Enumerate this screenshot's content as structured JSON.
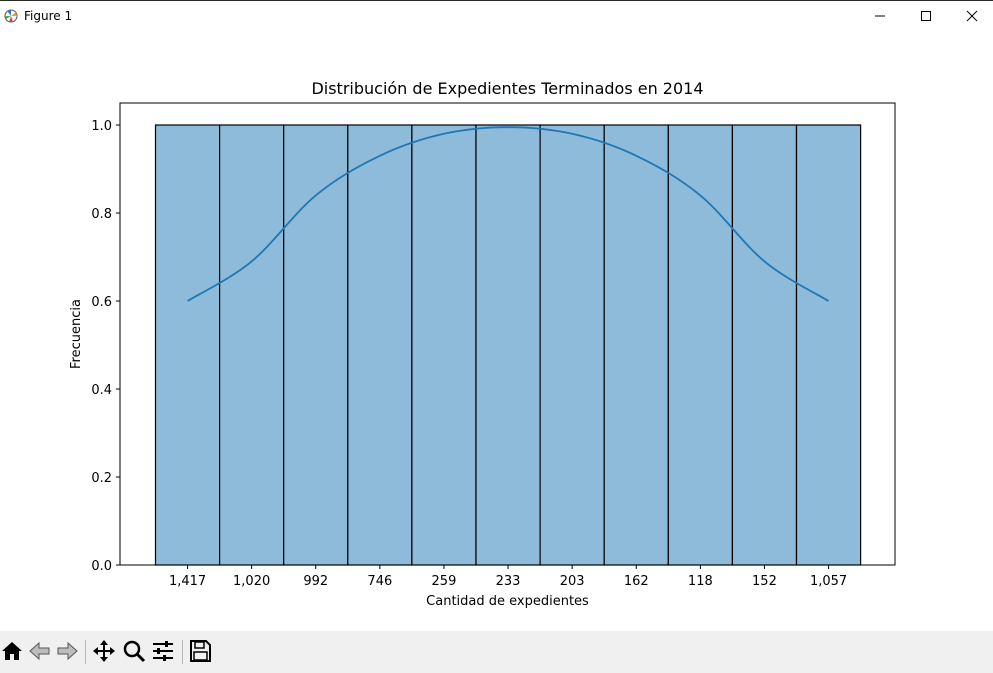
{
  "window": {
    "title": "Figure 1",
    "controls": [
      "minimize",
      "maximize",
      "close"
    ]
  },
  "toolbar": {
    "buttons": [
      {
        "name": "home",
        "icon": "home-icon"
      },
      {
        "name": "back",
        "icon": "back-arrow-icon"
      },
      {
        "name": "forward",
        "icon": "forward-arrow-icon"
      },
      {
        "name": "pan",
        "icon": "move-icon"
      },
      {
        "name": "zoom",
        "icon": "magnifier-icon"
      },
      {
        "name": "configure-subplots",
        "icon": "sliders-icon"
      },
      {
        "name": "save",
        "icon": "floppy-disk-icon"
      }
    ]
  },
  "chart_data": {
    "type": "bar",
    "title": "Distribución de Expedientes Terminados en 2014",
    "xlabel": "Cantidad de expedientes",
    "ylabel": "Frecuencia",
    "categories": [
      "1,417",
      "1,020",
      "992",
      "746",
      "259",
      "233",
      "203",
      "162",
      "118",
      "152",
      "1,057"
    ],
    "values": [
      1,
      1,
      1,
      1,
      1,
      1,
      1,
      1,
      1,
      1,
      1
    ],
    "ylim": [
      0,
      1.05
    ],
    "yticks": [
      "0.0",
      "0.2",
      "0.4",
      "0.6",
      "0.8",
      "1.0"
    ],
    "kde": [
      0.6,
      0.69,
      0.84,
      0.93,
      0.98,
      0.995,
      0.98,
      0.93,
      0.84,
      0.69,
      0.6
    ],
    "bar_color": "#8fbbda",
    "bar_edge_color": "#000000",
    "line_color": "#1f77b4",
    "grid": false
  }
}
